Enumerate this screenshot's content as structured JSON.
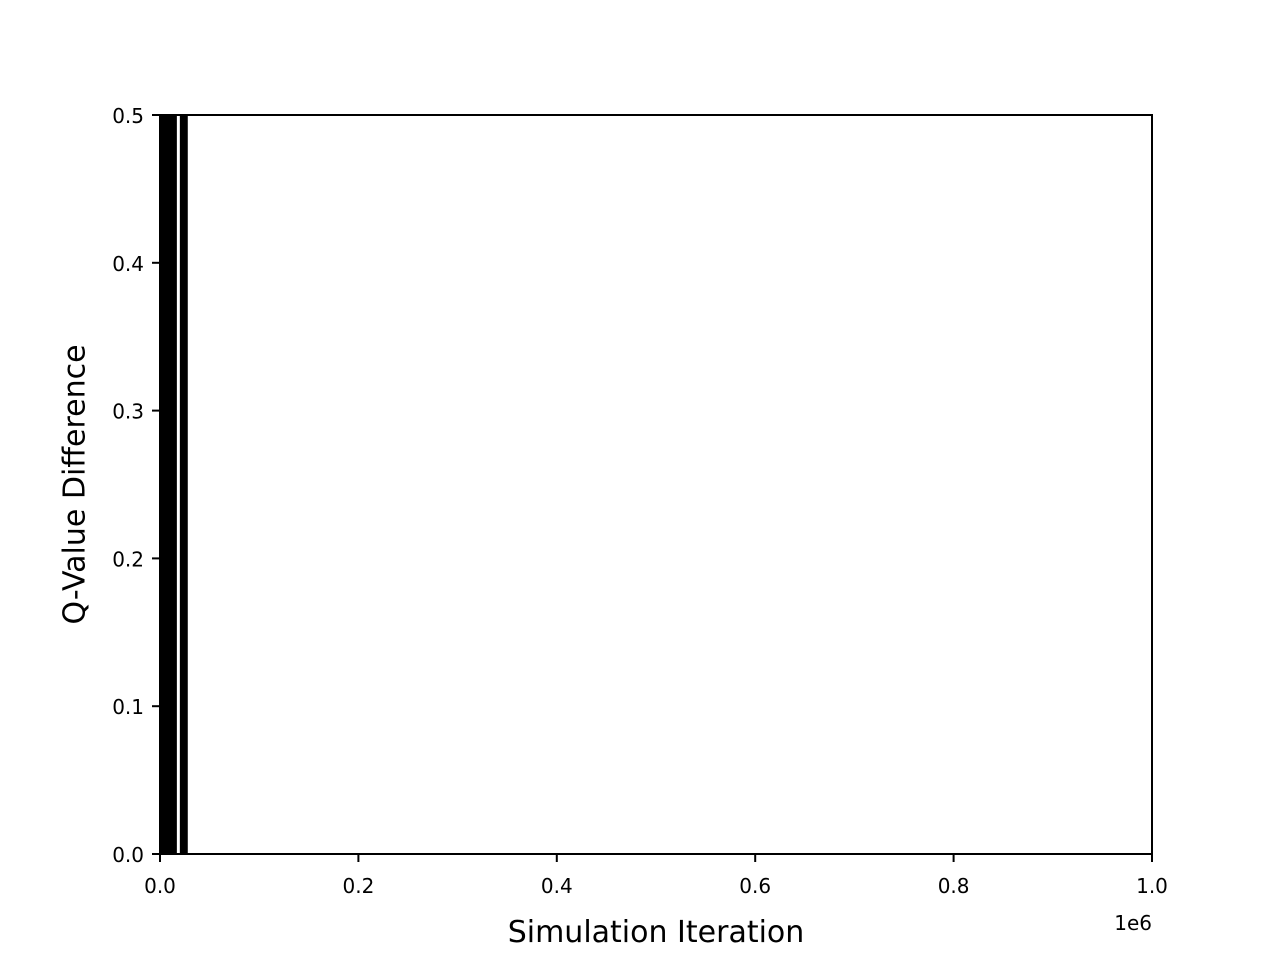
{
  "chart_data": {
    "type": "bar",
    "title": "",
    "xlabel": "Simulation Iteration",
    "ylabel": "Q-Value Difference",
    "x_offset_label": "1e6",
    "xlim": [
      0,
      1.0
    ],
    "ylim": [
      0,
      0.5
    ],
    "x_ticks": [
      0.0,
      0.2,
      0.4,
      0.6,
      0.8,
      1.0
    ],
    "x_tick_labels": [
      "0.0",
      "0.2",
      "0.4",
      "0.6",
      "0.8",
      "1.0"
    ],
    "y_ticks": [
      0.0,
      0.1,
      0.2,
      0.3,
      0.4,
      0.5
    ],
    "y_tick_labels": [
      "0.0",
      "0.1",
      "0.2",
      "0.3",
      "0.4",
      "0.5"
    ],
    "grid": false,
    "bar_color": "#000000",
    "bars": [
      {
        "x_start": 0.0,
        "x_end": 0.017,
        "value": 0.5
      },
      {
        "x_start": 0.02,
        "x_end": 0.028,
        "value": 0.5
      }
    ]
  }
}
